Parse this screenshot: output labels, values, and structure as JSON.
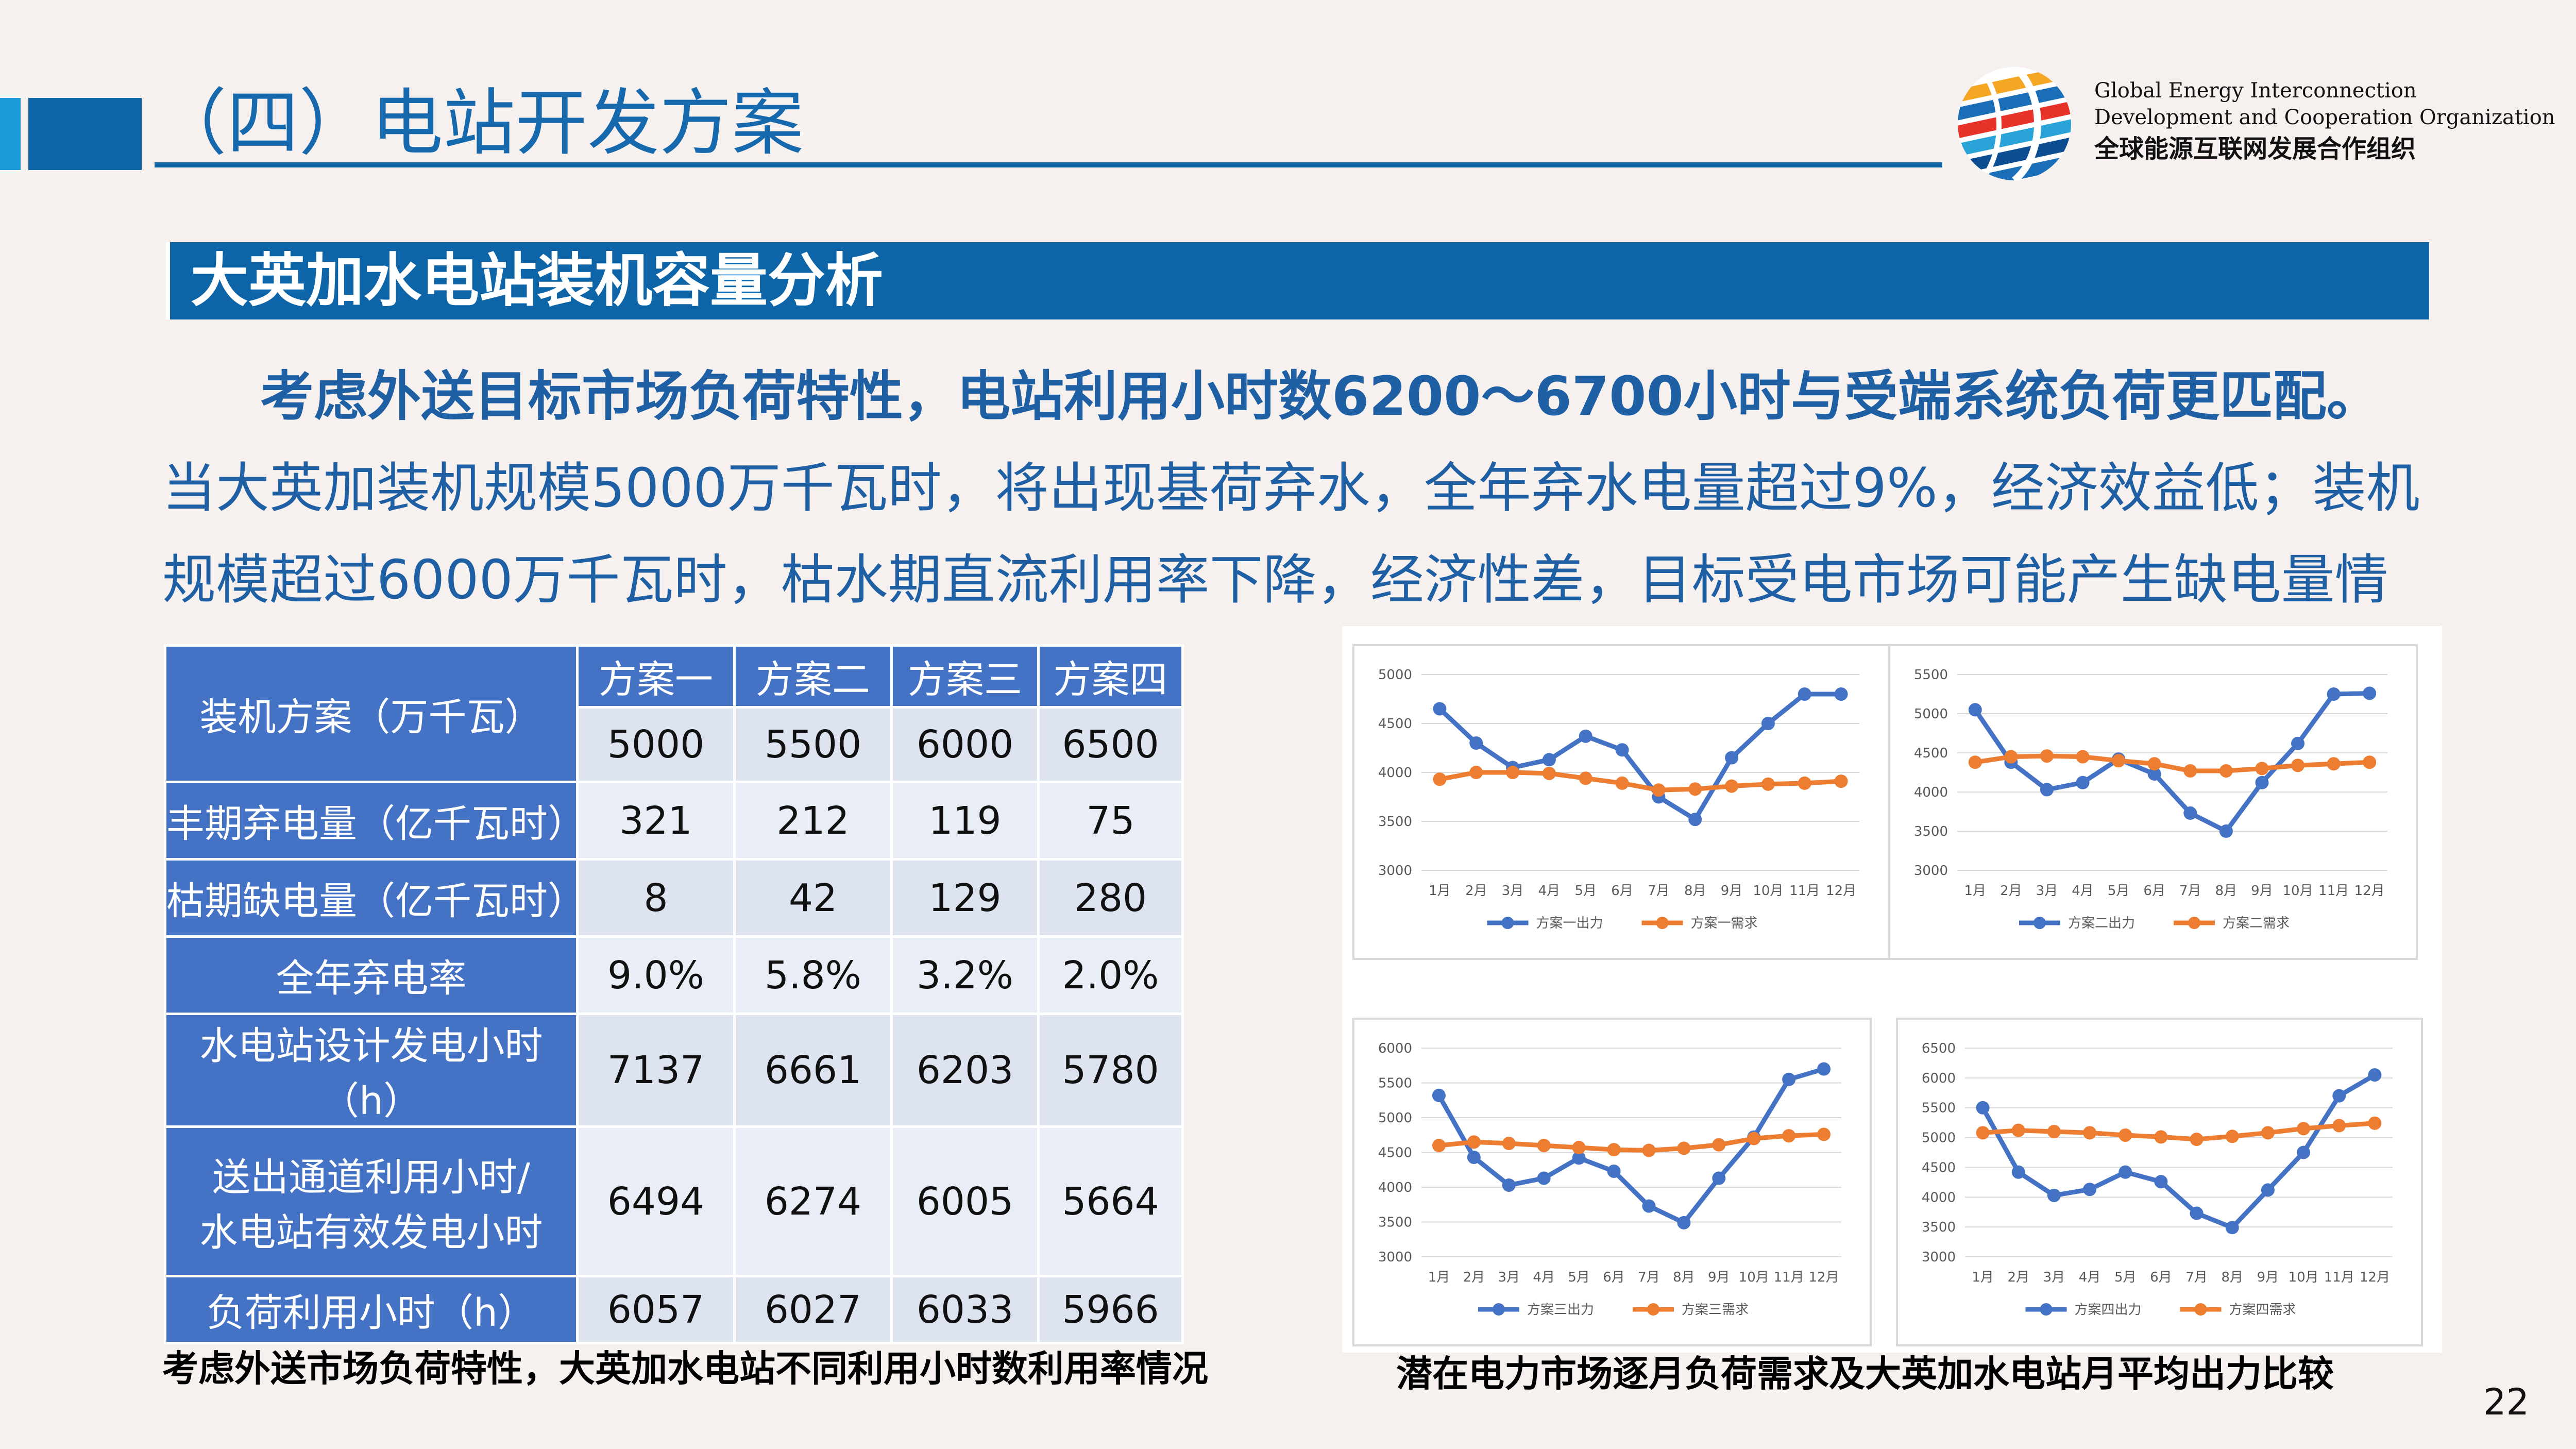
{
  "header": {
    "title": "（四）电站开发方案",
    "org_en_1": "Global Energy Interconnection",
    "org_en_2": "Development and Cooperation Organization",
    "org_cn": "全球能源互联网发展合作组织"
  },
  "banner": "大英加水电站装机容量分析",
  "paragraph": {
    "bold": "考虑外送目标市场负荷特性，电站利用小时数6200～6700小时与受端系统负荷更匹配。",
    "normal": "当大英加装机规模5000万千瓦时，将出现基荷弃水，全年弃水电量超过9%，经济效益低；装机规模超过6000万千瓦时，枯水期直流利用率下降，经济性差，目标受电市场可能产生缺电量情况。"
  },
  "table": {
    "corner": "装机方案（万千瓦）",
    "schemes": [
      "方案一",
      "方案二",
      "方案三",
      "方案四"
    ],
    "capacity": [
      "5000",
      "5500",
      "6000",
      "6500"
    ],
    "rows": [
      {
        "label": "丰期弃电量（亿千瓦时）",
        "values": [
          "321",
          "212",
          "119",
          "75"
        ]
      },
      {
        "label": "枯期缺电量（亿千瓦时）",
        "values": [
          "8",
          "42",
          "129",
          "280"
        ]
      },
      {
        "label": "全年弃电率",
        "values": [
          "9.0%",
          "5.8%",
          "3.2%",
          "2.0%"
        ]
      },
      {
        "label": "水电站设计发电小时（h）",
        "values": [
          "7137",
          "6661",
          "6203",
          "5780"
        ]
      },
      {
        "label_line1": "送出通道利用小时/",
        "label_line2": "水电站有效发电小时",
        "values": [
          "6494",
          "6274",
          "6005",
          "5664"
        ]
      },
      {
        "label": "负荷利用小时（h）",
        "values": [
          "6057",
          "6027",
          "6033",
          "5966"
        ]
      }
    ],
    "caption": "考虑外送市场负荷特性，大英加水电站不同利用小时数利用率情况"
  },
  "charts_caption": "潜在电力市场逐月负荷需求及大英加水电站月平均出力比较",
  "page_number": "22",
  "colors": {
    "output": "#4472c4",
    "demand": "#ed7d31",
    "primary": "#0d64a6"
  },
  "chart_data": [
    {
      "type": "line",
      "categories": [
        "1月",
        "2月",
        "3月",
        "4月",
        "5月",
        "6月",
        "7月",
        "8月",
        "9月",
        "10月",
        "11月",
        "12月"
      ],
      "ylim": [
        3000,
        5000
      ],
      "yticks": [
        3000,
        3500,
        4000,
        4500,
        5000
      ],
      "series": [
        {
          "name": "方案一出力",
          "values": [
            4650,
            4300,
            4050,
            4130,
            4370,
            4230,
            3750,
            3520,
            4150,
            4500,
            4800,
            4800
          ]
        },
        {
          "name": "方案一需求",
          "values": [
            3930,
            4000,
            4000,
            3990,
            3940,
            3890,
            3820,
            3830,
            3860,
            3880,
            3890,
            3910
          ]
        }
      ]
    },
    {
      "type": "line",
      "categories": [
        "1月",
        "2月",
        "3月",
        "4月",
        "5月",
        "6月",
        "7月",
        "8月",
        "9月",
        "10月",
        "11月",
        "12月"
      ],
      "ylim": [
        3000,
        5500
      ],
      "yticks": [
        3000,
        3500,
        4000,
        4500,
        5000,
        5500
      ],
      "series": [
        {
          "name": "方案二出力",
          "values": [
            5050,
            4380,
            4030,
            4120,
            4420,
            4230,
            3730,
            3500,
            4120,
            4620,
            5250,
            5260
          ]
        },
        {
          "name": "方案二需求",
          "values": [
            4380,
            4450,
            4460,
            4450,
            4400,
            4360,
            4270,
            4270,
            4300,
            4340,
            4360,
            4380
          ]
        }
      ]
    },
    {
      "type": "line",
      "categories": [
        "1月",
        "2月",
        "3月",
        "4月",
        "5月",
        "6月",
        "7月",
        "8月",
        "9月",
        "10月",
        "11月",
        "12月"
      ],
      "ylim": [
        3000,
        6000
      ],
      "yticks": [
        3000,
        3500,
        4000,
        4500,
        5000,
        5500,
        6000
      ],
      "series": [
        {
          "name": "方案三出力",
          "values": [
            5320,
            4430,
            4030,
            4130,
            4420,
            4230,
            3730,
            3490,
            4130,
            4720,
            5550,
            5700
          ]
        },
        {
          "name": "方案三需求",
          "values": [
            4600,
            4650,
            4630,
            4600,
            4570,
            4540,
            4530,
            4560,
            4610,
            4700,
            4740,
            4760
          ]
        }
      ]
    },
    {
      "type": "line",
      "categories": [
        "1月",
        "2月",
        "3月",
        "4月",
        "5月",
        "6月",
        "7月",
        "8月",
        "9月",
        "10月",
        "11月",
        "12月"
      ],
      "ylim": [
        3000,
        6500
      ],
      "yticks": [
        3000,
        3500,
        4000,
        4500,
        5000,
        5500,
        6000,
        6500
      ],
      "series": [
        {
          "name": "方案四出力",
          "values": [
            5500,
            4420,
            4030,
            4130,
            4420,
            4260,
            3730,
            3490,
            4120,
            4750,
            5700,
            6050
          ]
        },
        {
          "name": "方案四需求",
          "values": [
            5080,
            5120,
            5100,
            5080,
            5040,
            5010,
            4970,
            5020,
            5080,
            5150,
            5200,
            5240
          ]
        }
      ]
    }
  ]
}
